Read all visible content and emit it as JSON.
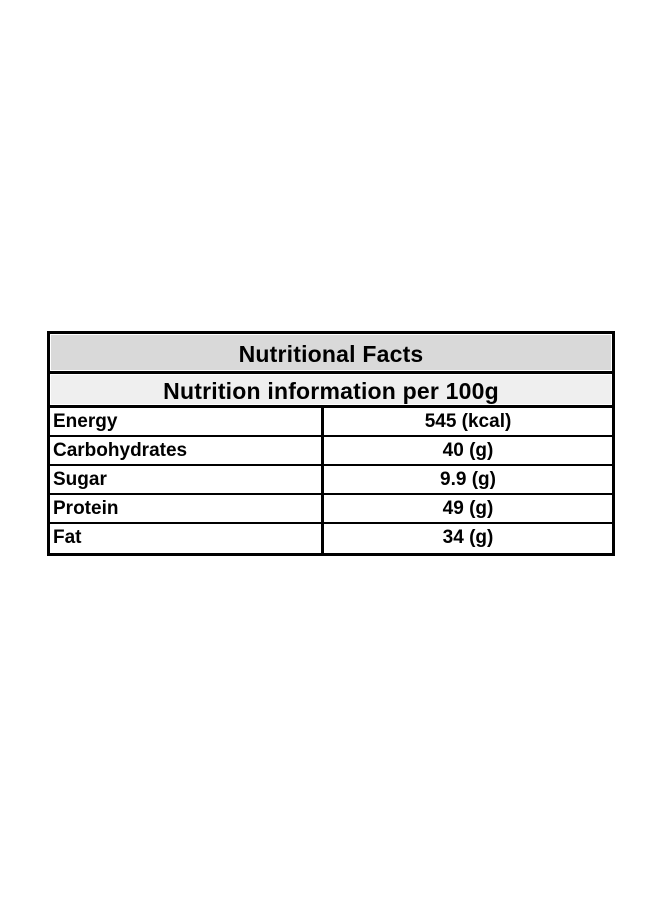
{
  "page": {
    "background": "#ffffff"
  },
  "table": {
    "title": "Nutritional Facts",
    "subtitle": "Nutrition information per 100g",
    "rows": [
      {
        "label": "Energy",
        "value": "545 (kcal)"
      },
      {
        "label": "Carbohydrates",
        "value": "40 (g)"
      },
      {
        "label": "Sugar",
        "value": "9.9 (g)"
      },
      {
        "label": "Protein",
        "value": "49 (g)"
      },
      {
        "label": "Fat",
        "value": "34 (g)"
      }
    ],
    "colors": {
      "title_bg": "#d9d9d9",
      "subtitle_bg": "#efefef",
      "border": "#000000",
      "text": "#000000"
    }
  }
}
